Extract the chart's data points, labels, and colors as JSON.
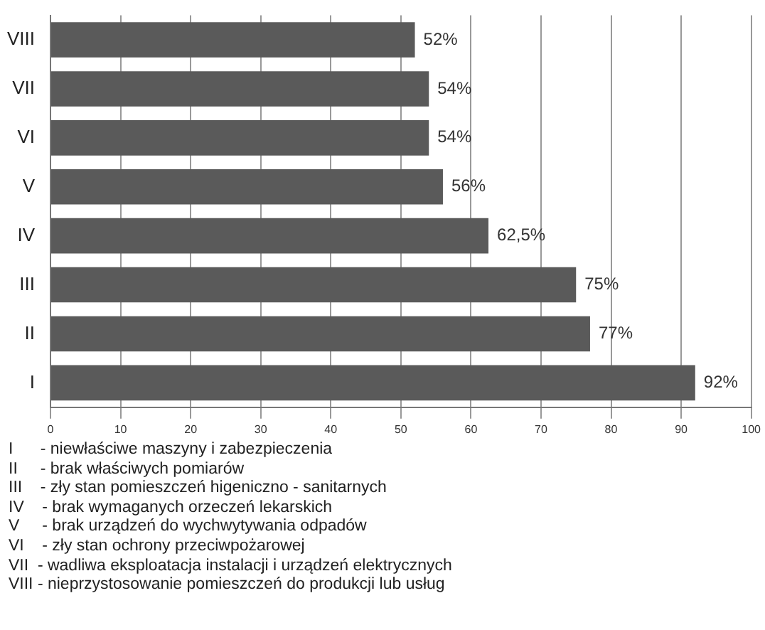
{
  "chart_data": {
    "type": "bar",
    "orientation": "horizontal",
    "categories": [
      "VIII",
      "VII",
      "VI",
      "V",
      "IV",
      "III",
      "II",
      "I"
    ],
    "values": [
      52,
      54,
      54,
      56,
      62.5,
      75,
      77,
      92
    ],
    "value_labels": [
      "52%",
      "54%",
      "54%",
      "56%",
      "62,5%",
      "75%",
      "77%",
      "92%"
    ],
    "color": "#5a5a5a",
    "xlim": [
      0,
      100
    ],
    "xticks": [
      0,
      10,
      20,
      30,
      40,
      50,
      60,
      70,
      80,
      90,
      100
    ],
    "grid": "x",
    "legend": false,
    "annotations": [
      "I      - niewłaściwe maszyny i zabezpieczenia",
      "II     - brak właściwych pomiarów",
      "III    - zły stan pomieszczeń higeniczno - sanitarnych",
      "IV    - brak wymaganych orzeczeń lekarskich",
      "V     - brak urządzeń do wychwytywania odpadów",
      "VI    - zły stan ochrony przeciwpożarowej",
      "VII  - wadliwa eksploatacja instalacji i urządzeń elektrycznych",
      "VIII - nieprzystosowanie pomieszczeń do produkcji lub usług"
    ]
  }
}
